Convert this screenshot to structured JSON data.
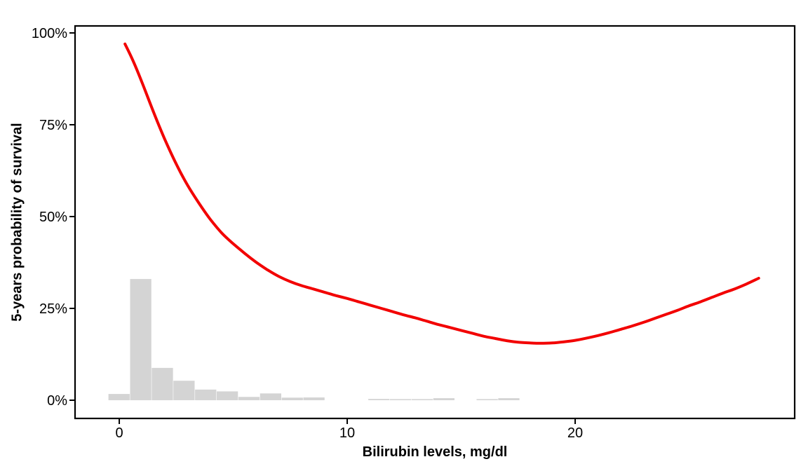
{
  "chart_data": {
    "type": "line",
    "title": "",
    "xlabel": "Bilirubin levels, mg/dl",
    "ylabel": "5-years probability of survival",
    "xlim": [
      -1.94,
      29.63
    ],
    "ylim": [
      -4.96,
      101.9
    ],
    "grid": false,
    "panel_border": true,
    "legend": "none",
    "background_color": "#FFFFFF",
    "axis_color": "#000000",
    "x_ticks": [
      {
        "value": 0,
        "label": "0"
      },
      {
        "value": 10,
        "label": "10"
      },
      {
        "value": 20,
        "label": "20"
      }
    ],
    "y_ticks": [
      {
        "value": 0,
        "label": "0%"
      },
      {
        "value": 25,
        "label": "25%"
      },
      {
        "value": 50,
        "label": "50%"
      },
      {
        "value": 75,
        "label": "75%"
      },
      {
        "value": 100,
        "label": "100%"
      }
    ],
    "series": [
      {
        "name": "histogram of bilirubin levels (relative frequency, %)",
        "type": "bar",
        "color": "#D4D4D4",
        "bar_width": 0.95,
        "bars": [
          {
            "x": 0.0,
            "height_pct": 1.7
          },
          {
            "x": 0.95,
            "height_pct": 33.0
          },
          {
            "x": 1.9,
            "height_pct": 8.8
          },
          {
            "x": 2.85,
            "height_pct": 5.3
          },
          {
            "x": 3.8,
            "height_pct": 2.9
          },
          {
            "x": 4.75,
            "height_pct": 2.4
          },
          {
            "x": 5.7,
            "height_pct": 0.9
          },
          {
            "x": 6.65,
            "height_pct": 1.85
          },
          {
            "x": 7.6,
            "height_pct": 0.7
          },
          {
            "x": 8.55,
            "height_pct": 0.75
          },
          {
            "x": 11.4,
            "height_pct": 0.35
          },
          {
            "x": 12.35,
            "height_pct": 0.3
          },
          {
            "x": 13.3,
            "height_pct": 0.3
          },
          {
            "x": 14.25,
            "height_pct": 0.55
          },
          {
            "x": 16.15,
            "height_pct": 0.3
          },
          {
            "x": 17.1,
            "height_pct": 0.55
          }
        ]
      },
      {
        "name": "smoothed 5-year survival probability vs bilirubin",
        "type": "line",
        "color": "#F20000",
        "line_width": 4,
        "points": [
          [
            0.25,
            97.0
          ],
          [
            0.6,
            92.5
          ],
          [
            1.0,
            86.5
          ],
          [
            1.5,
            78.5
          ],
          [
            2.0,
            71.0
          ],
          [
            2.5,
            64.3
          ],
          [
            3.0,
            58.5
          ],
          [
            3.5,
            53.6
          ],
          [
            4.0,
            49.2
          ],
          [
            4.5,
            45.5
          ],
          [
            5.0,
            42.6
          ],
          [
            5.5,
            40.0
          ],
          [
            6.0,
            37.6
          ],
          [
            6.5,
            35.5
          ],
          [
            7.0,
            33.7
          ],
          [
            7.5,
            32.3
          ],
          [
            8.0,
            31.2
          ],
          [
            8.5,
            30.3
          ],
          [
            9.0,
            29.4
          ],
          [
            9.5,
            28.5
          ],
          [
            10.0,
            27.7
          ],
          [
            10.5,
            26.8
          ],
          [
            11.0,
            25.9
          ],
          [
            11.5,
            25.0
          ],
          [
            12.0,
            24.1
          ],
          [
            12.5,
            23.2
          ],
          [
            13.0,
            22.4
          ],
          [
            13.5,
            21.5
          ],
          [
            14.0,
            20.6
          ],
          [
            14.5,
            19.8
          ],
          [
            15.0,
            19.0
          ],
          [
            15.5,
            18.2
          ],
          [
            16.0,
            17.4
          ],
          [
            16.5,
            16.8
          ],
          [
            17.0,
            16.2
          ],
          [
            17.5,
            15.8
          ],
          [
            18.0,
            15.6
          ],
          [
            18.5,
            15.5
          ],
          [
            19.0,
            15.6
          ],
          [
            19.5,
            15.9
          ],
          [
            20.0,
            16.3
          ],
          [
            20.5,
            16.9
          ],
          [
            21.0,
            17.6
          ],
          [
            21.5,
            18.4
          ],
          [
            22.0,
            19.3
          ],
          [
            22.5,
            20.2
          ],
          [
            23.0,
            21.2
          ],
          [
            23.5,
            22.3
          ],
          [
            24.0,
            23.4
          ],
          [
            24.5,
            24.5
          ],
          [
            25.0,
            25.7
          ],
          [
            25.5,
            26.8
          ],
          [
            26.0,
            28.0
          ],
          [
            26.5,
            29.2
          ],
          [
            27.0,
            30.3
          ],
          [
            27.5,
            31.6
          ],
          [
            28.05,
            33.2
          ]
        ]
      }
    ]
  }
}
